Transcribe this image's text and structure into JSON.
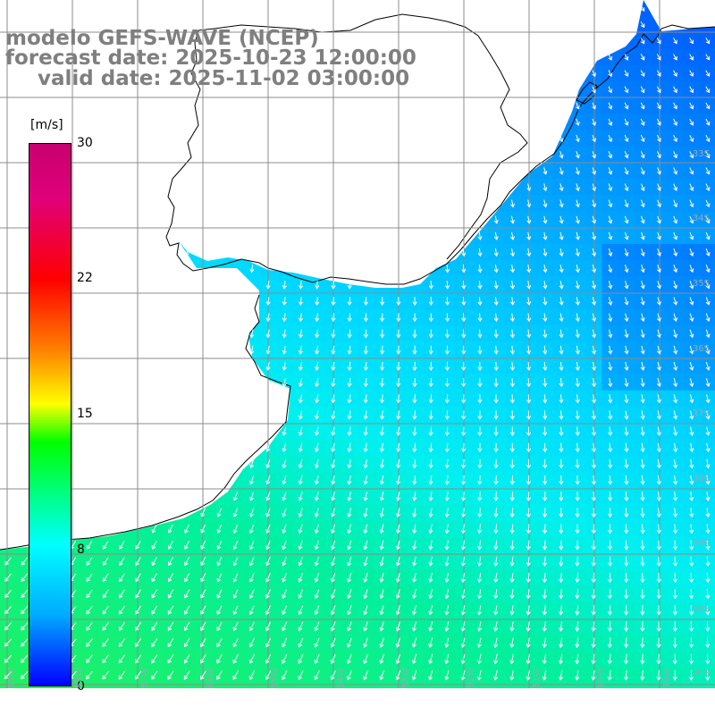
{
  "title": {
    "model": "modelo GEFS-WAVE (NCEP)",
    "forecast": "forecast date: 2025-10-23 12:00:00",
    "valid": "valid date: 2025-11-02 03:00:00"
  },
  "colorbar": {
    "unit": "[m/s]",
    "ticks": [
      "30",
      "22",
      "15",
      "8",
      "0"
    ],
    "colors": [
      "#0000ff",
      "#00aaff",
      "#00ffff",
      "#00ff00",
      "#ffff00",
      "#ff8000",
      "#ff0000",
      "#c8006e"
    ]
  },
  "map": {
    "lat_labels": [
      "33S",
      "34S",
      "35S",
      "36S",
      "37S",
      "38S",
      "39S",
      "40S",
      "41S"
    ],
    "lon_labels": [
      "59W",
      "58W",
      "57W",
      "56W",
      "55W",
      "54W",
      "53W",
      "52W",
      "51W",
      "50W",
      "49W"
    ],
    "land_color": "#ffffff",
    "grid_color": "#8c8c8c",
    "arrow_color": "#ffffff"
  }
}
